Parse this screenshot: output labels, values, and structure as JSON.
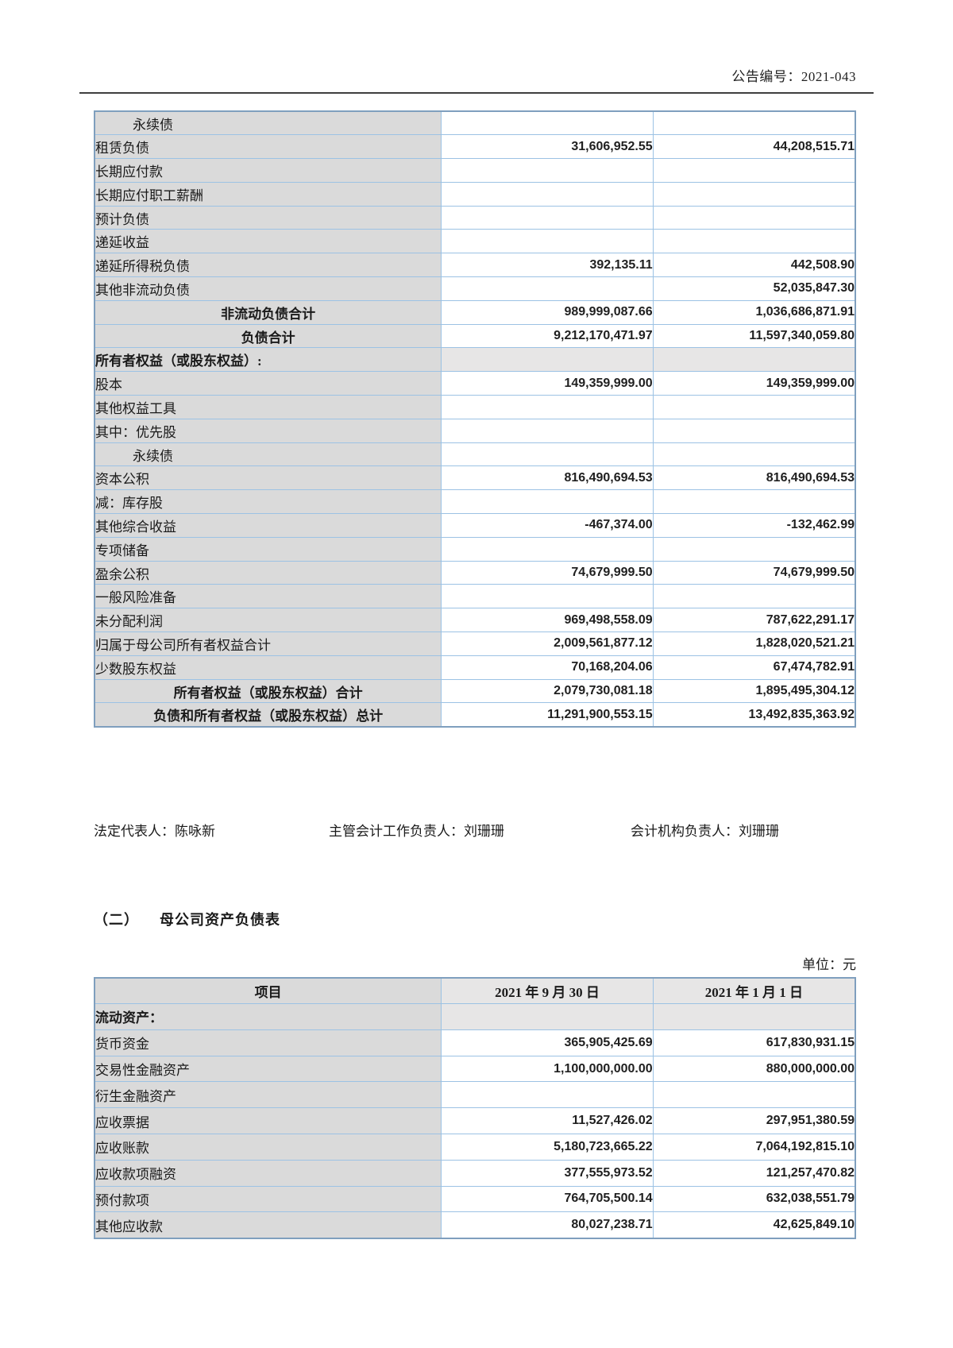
{
  "page": {
    "notice_number": "公告编号：2021-043",
    "section2_num": "（二）",
    "section2_title": "母公司资产负债表",
    "unit_label": "单位：元",
    "signatures": {
      "legal_rep": "法定代表人：陈咏新",
      "chief_accounting_officer": "主管会计工作负责人：刘珊珊",
      "accounting_dept_head": "会计机构负责人：刘珊珊"
    },
    "colors": {
      "label_cell_bg": "#dadada",
      "section_row_bg": "#e7e6e6",
      "table_border": "#9cc2e4",
      "rule_line": "#3f3f3f"
    }
  },
  "table1": {
    "rows": [
      {
        "label": "永续债",
        "v1": "",
        "v2": "",
        "style": "indent"
      },
      {
        "label": "租赁负债",
        "v1": "31,606,952.55",
        "v2": "44,208,515.71",
        "style": "normal"
      },
      {
        "label": "长期应付款",
        "v1": "",
        "v2": "",
        "style": "normal"
      },
      {
        "label": "长期应付职工薪酬",
        "v1": "",
        "v2": "",
        "style": "normal"
      },
      {
        "label": "预计负债",
        "v1": "",
        "v2": "",
        "style": "normal"
      },
      {
        "label": "递延收益",
        "v1": "",
        "v2": "",
        "style": "normal"
      },
      {
        "label": "递延所得税负债",
        "v1": "392,135.11",
        "v2": "442,508.90",
        "style": "normal"
      },
      {
        "label": "其他非流动负债",
        "v1": "",
        "v2": "52,035,847.30",
        "style": "normal"
      },
      {
        "label": "非流动负债合计",
        "v1": "989,999,087.66",
        "v2": "1,036,686,871.91",
        "style": "total"
      },
      {
        "label": "负债合计",
        "v1": "9,212,170,471.97",
        "v2": "11,597,340,059.80",
        "style": "total"
      },
      {
        "label": "所有者权益（或股东权益）:",
        "v1": "",
        "v2": "",
        "style": "section"
      },
      {
        "label": "股本",
        "v1": "149,359,999.00",
        "v2": "149,359,999.00",
        "style": "normal"
      },
      {
        "label": "其他权益工具",
        "v1": "",
        "v2": "",
        "style": "normal"
      },
      {
        "label": "其中：优先股",
        "v1": "",
        "v2": "",
        "style": "normal"
      },
      {
        "label": "永续债",
        "v1": "",
        "v2": "",
        "style": "indent"
      },
      {
        "label": "资本公积",
        "v1": "816,490,694.53",
        "v2": "816,490,694.53",
        "style": "normal"
      },
      {
        "label": "减：库存股",
        "v1": "",
        "v2": "",
        "style": "normal"
      },
      {
        "label": "其他综合收益",
        "v1": "-467,374.00",
        "v2": "-132,462.99",
        "style": "normal"
      },
      {
        "label": "专项储备",
        "v1": "",
        "v2": "",
        "style": "normal"
      },
      {
        "label": "盈余公积",
        "v1": "74,679,999.50",
        "v2": "74,679,999.50",
        "style": "normal"
      },
      {
        "label": "一般风险准备",
        "v1": "",
        "v2": "",
        "style": "normal"
      },
      {
        "label": "未分配利润",
        "v1": "969,498,558.09",
        "v2": "787,622,291.17",
        "style": "normal"
      },
      {
        "label": "归属于母公司所有者权益合计",
        "v1": "2,009,561,877.12",
        "v2": "1,828,020,521.21",
        "style": "normal"
      },
      {
        "label": "少数股东权益",
        "v1": "70,168,204.06",
        "v2": "67,474,782.91",
        "style": "normal"
      },
      {
        "label": "所有者权益（或股东权益）合计",
        "v1": "2,079,730,081.18",
        "v2": "1,895,495,304.12",
        "style": "total"
      },
      {
        "label": "负债和所有者权益（或股东权益）总计",
        "v1": "11,291,900,553.15",
        "v2": "13,492,835,363.92",
        "style": "total"
      }
    ]
  },
  "table2": {
    "headers": [
      "项目",
      "2021 年 9 月 30 日",
      "2021 年 1 月 1 日"
    ],
    "rows": [
      {
        "label": "流动资产：",
        "v1": "",
        "v2": "",
        "style": "section"
      },
      {
        "label": "货币资金",
        "v1": "365,905,425.69",
        "v2": "617,830,931.15",
        "style": "normal"
      },
      {
        "label": "交易性金融资产",
        "v1": "1,100,000,000.00",
        "v2": "880,000,000.00",
        "style": "normal"
      },
      {
        "label": "衍生金融资产",
        "v1": "",
        "v2": "",
        "style": "normal"
      },
      {
        "label": "应收票据",
        "v1": "11,527,426.02",
        "v2": "297,951,380.59",
        "style": "normal"
      },
      {
        "label": "应收账款",
        "v1": "5,180,723,665.22",
        "v2": "7,064,192,815.10",
        "style": "normal"
      },
      {
        "label": "应收款项融资",
        "v1": "377,555,973.52",
        "v2": "121,257,470.82",
        "style": "normal"
      },
      {
        "label": "预付款项",
        "v1": "764,705,500.14",
        "v2": "632,038,551.79",
        "style": "normal"
      },
      {
        "label": "其他应收款",
        "v1": "80,027,238.71",
        "v2": "42,625,849.10",
        "style": "normal"
      }
    ]
  }
}
